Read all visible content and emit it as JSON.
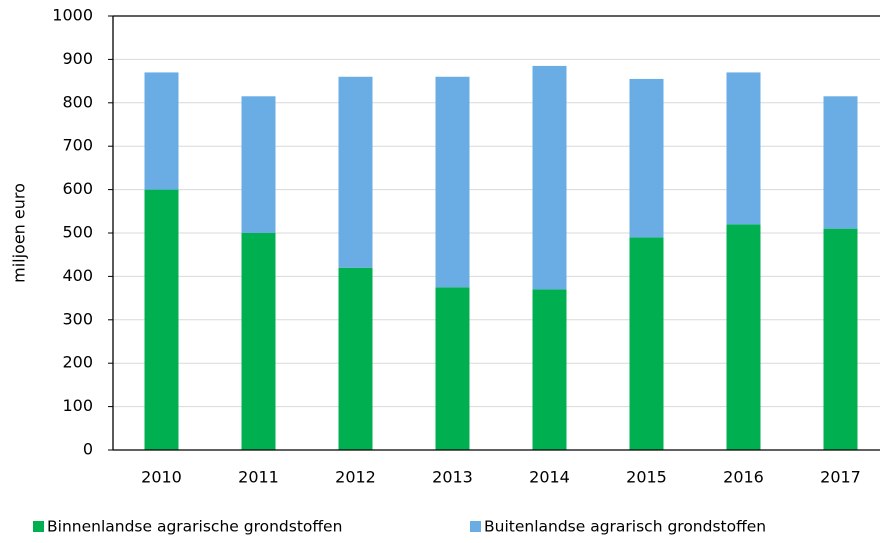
{
  "chart_data": {
    "type": "stacked_bar",
    "y_label": "miljoen euro",
    "categories": [
      "2010",
      "2011",
      "2012",
      "2013",
      "2014",
      "2015",
      "2016",
      "2017"
    ],
    "series": [
      {
        "name": "Binnenlandse agrarische grondstoffen",
        "color": "#00b050",
        "values": [
          600,
          500,
          420,
          375,
          370,
          490,
          520,
          510
        ]
      },
      {
        "name": "Buitenlandse agrarisch grondstoffen",
        "color": "#6aade4",
        "values": [
          270,
          315,
          440,
          485,
          515,
          365,
          350,
          305
        ]
      }
    ],
    "ylim": [
      0,
      1000
    ],
    "yticks": [
      0,
      100,
      200,
      300,
      400,
      500,
      600,
      700,
      800,
      900,
      1000
    ],
    "grid": true
  }
}
